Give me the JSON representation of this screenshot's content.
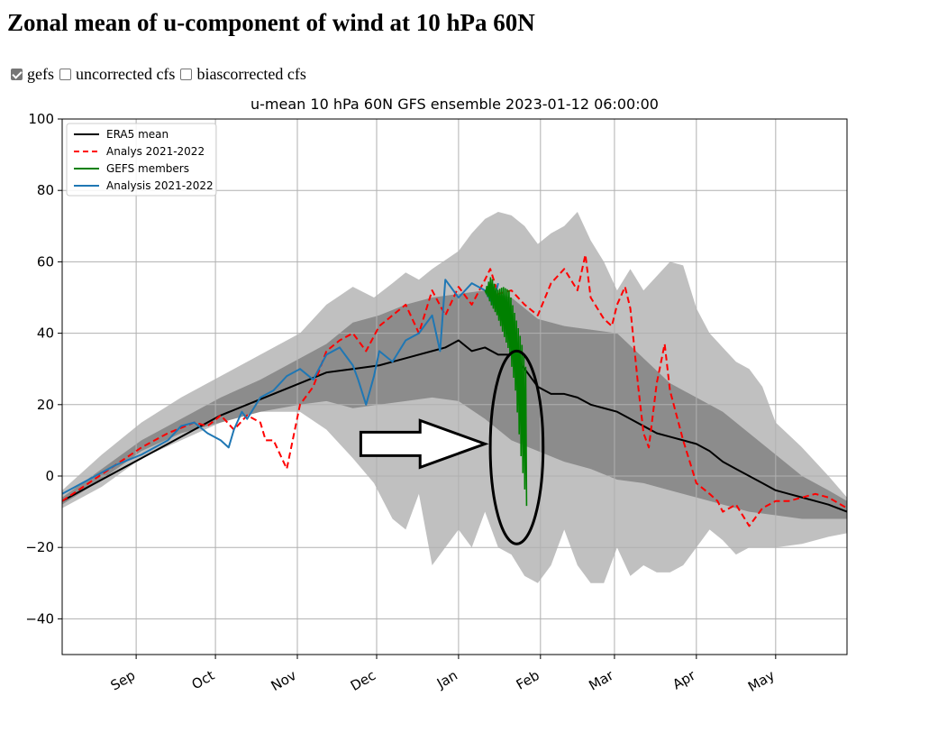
{
  "page": {
    "title": "Zonal mean of u-component of wind at 10 hPa 60N"
  },
  "controls": [
    {
      "label": "gefs",
      "checked": true
    },
    {
      "label": "uncorrected cfs",
      "checked": false
    },
    {
      "label": "biascorrected cfs",
      "checked": false
    }
  ],
  "chart_data": {
    "type": "line",
    "title": "u-mean 10 hPa 60N GFS ensemble 2023-01-12 06:00:00",
    "xlabel": "",
    "ylabel": "",
    "ylim": [
      -50,
      100
    ],
    "xlim_day": [
      0,
      297
    ],
    "yticks": [
      -40,
      -20,
      0,
      20,
      40,
      60,
      80,
      100
    ],
    "xticks": [
      {
        "label": "Sep",
        "day": 28
      },
      {
        "label": "Oct",
        "day": 58
      },
      {
        "label": "Nov",
        "day": 89
      },
      {
        "label": "Dec",
        "day": 119
      },
      {
        "label": "Jan",
        "day": 150
      },
      {
        "label": "Feb",
        "day": 181
      },
      {
        "label": "Mar",
        "day": 209
      },
      {
        "label": "Apr",
        "day": 240
      },
      {
        "label": "May",
        "day": 270
      }
    ],
    "grid": true,
    "legend_position": "top-left",
    "legend": [
      {
        "name": "ERA5 mean",
        "color": "#000000",
        "dash": "solid"
      },
      {
        "name": "Analys 2021-2022",
        "color": "#ff0000",
        "dash": "dashed"
      },
      {
        "name": "GEFS members",
        "color": "#008000",
        "dash": "solid"
      },
      {
        "name": "Analysis 2021-2022",
        "color": "#1f77b4",
        "dash": "solid"
      }
    ],
    "bands": [
      {
        "name": "min-max",
        "color": "#c0c0c0",
        "x": [
          0,
          15,
          30,
          45,
          60,
          75,
          90,
          100,
          110,
          118,
          125,
          130,
          135,
          140,
          150,
          155,
          160,
          165,
          170,
          175,
          180,
          185,
          190,
          195,
          200,
          205,
          210,
          215,
          220,
          225,
          230,
          235,
          240,
          245,
          250,
          255,
          260,
          265,
          270,
          280,
          290,
          297
        ],
        "upper": [
          -4,
          6,
          15,
          22,
          28,
          34,
          40,
          48,
          53,
          50,
          54,
          57,
          55,
          58,
          63,
          68,
          72,
          74,
          73,
          70,
          65,
          68,
          70,
          74,
          66,
          60,
          52,
          58,
          52,
          56,
          60,
          59,
          47,
          40,
          36,
          32,
          30,
          25,
          15,
          8,
          0,
          -6
        ],
        "lower": [
          -9,
          -3,
          5,
          10,
          15,
          18,
          18,
          13,
          5,
          -2,
          -12,
          -15,
          -5,
          -25,
          -15,
          -20,
          -10,
          -20,
          -22,
          -28,
          -30,
          -25,
          -15,
          -25,
          -30,
          -30,
          -20,
          -28,
          -25,
          -27,
          -27,
          -25,
          -20,
          -15,
          -18,
          -22,
          -20,
          -20,
          -20,
          -19,
          -17,
          -16
        ]
      },
      {
        "name": "inner",
        "color": "#8c8c8c",
        "x": [
          0,
          15,
          30,
          45,
          60,
          75,
          90,
          100,
          110,
          120,
          130,
          140,
          150,
          160,
          170,
          180,
          190,
          200,
          210,
          220,
          230,
          240,
          250,
          260,
          270,
          280,
          290,
          297
        ],
        "upper": [
          -6,
          2,
          10,
          16,
          22,
          27,
          33,
          37,
          43,
          45,
          48,
          50,
          51,
          52,
          50,
          44,
          42,
          41,
          40,
          33,
          26,
          22,
          18,
          12,
          6,
          0,
          -4,
          -7
        ],
        "lower": [
          -8,
          -1,
          7,
          12,
          15,
          18,
          20,
          21,
          19,
          20,
          21,
          22,
          21,
          16,
          10,
          7,
          4,
          2,
          -1,
          -2,
          -4,
          -6,
          -8,
          -10,
          -11,
          -12,
          -12,
          -12
        ]
      }
    ],
    "series": [
      {
        "name": "ERA5 mean",
        "color": "#000000",
        "x": [
          0,
          10,
          20,
          30,
          40,
          50,
          60,
          70,
          80,
          90,
          100,
          110,
          120,
          130,
          140,
          145,
          150,
          155,
          160,
          165,
          170,
          175,
          180,
          185,
          190,
          195,
          200,
          205,
          210,
          215,
          220,
          225,
          230,
          235,
          240,
          245,
          250,
          255,
          260,
          265,
          270,
          275,
          280,
          285,
          290,
          297
        ],
        "y": [
          -7,
          -3,
          1,
          5,
          9,
          13,
          17,
          20,
          23,
          26,
          29,
          30,
          31,
          33,
          35,
          36,
          38,
          35,
          36,
          34,
          34,
          30,
          25,
          23,
          23,
          22,
          20,
          19,
          18,
          16,
          14,
          12,
          11,
          10,
          9,
          7,
          4,
          2,
          0,
          -2,
          -4,
          -5,
          -6,
          -7,
          -8,
          -10
        ]
      },
      {
        "name": "Analys 2021-2022",
        "color": "#ff0000",
        "x": [
          0,
          10,
          20,
          30,
          40,
          50,
          55,
          60,
          65,
          70,
          75,
          77,
          80,
          85,
          90,
          95,
          100,
          105,
          110,
          115,
          120,
          125,
          130,
          135,
          140,
          145,
          150,
          155,
          160,
          162,
          165,
          170,
          175,
          180,
          185,
          190,
          195,
          198,
          200,
          205,
          208,
          210,
          213,
          215,
          218,
          220,
          222,
          225,
          228,
          230,
          235,
          240,
          245,
          248,
          250,
          255,
          260,
          265,
          270,
          275,
          280,
          285,
          290,
          297
        ],
        "y": [
          -7,
          -2,
          3,
          8,
          12,
          15,
          14,
          17,
          13,
          17,
          15,
          10,
          10,
          2,
          20,
          25,
          35,
          38,
          40,
          35,
          42,
          45,
          48,
          40,
          52,
          45,
          53,
          48,
          55,
          58,
          51,
          52,
          48,
          45,
          54,
          58,
          52,
          62,
          50,
          44,
          42,
          48,
          53,
          47,
          25,
          12,
          8,
          26,
          37,
          24,
          10,
          -2,
          -5,
          -7,
          -10,
          -8,
          -14,
          -9,
          -7,
          -7,
          -6,
          -5,
          -6,
          -9
        ]
      },
      {
        "name": "Analysis 2021-2022",
        "color": "#1f77b4",
        "x": [
          0,
          10,
          20,
          30,
          40,
          45,
          50,
          55,
          60,
          63,
          65,
          68,
          70,
          75,
          80,
          85,
          90,
          95,
          100,
          105,
          110,
          112,
          115,
          118,
          120,
          125,
          130,
          135,
          140,
          143,
          145,
          150,
          155,
          160,
          163,
          165
        ],
        "y": [
          -5,
          -1,
          3,
          6,
          10,
          14,
          15,
          12,
          10,
          8,
          13,
          18,
          16,
          22,
          24,
          28,
          30,
          27,
          34,
          36,
          31,
          27,
          20,
          28,
          35,
          32,
          38,
          40,
          45,
          35,
          55,
          50,
          54,
          52,
          48,
          54
        ]
      }
    ],
    "gefs_members": {
      "color": "#008000",
      "x_start": 160,
      "x_end": 176,
      "upper": [
        52,
        56,
        52,
        53,
        52,
        45,
        38,
        28
      ],
      "lower": [
        52,
        48,
        45,
        40,
        35,
        25,
        5,
        -10
      ]
    },
    "annotation": {
      "arrow": {
        "from_x": 113,
        "to_x": 160,
        "y": 9
      },
      "ellipse": {
        "cx": 172,
        "cy": 8,
        "rx": 10,
        "ry": 27
      }
    }
  }
}
